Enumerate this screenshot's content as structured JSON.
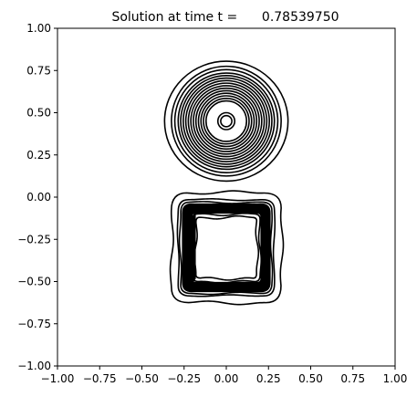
{
  "chart_data": {
    "type": "contour",
    "title": "Solution at time t =      0.78539750",
    "xlabel": "",
    "ylabel": "",
    "xlim": [
      -1.0,
      1.0
    ],
    "ylim": [
      -1.0,
      1.0
    ],
    "grid": false,
    "legend": "none",
    "line_color": "#000000",
    "x_ticks": [
      -1.0,
      -0.75,
      -0.5,
      -0.25,
      0.0,
      0.25,
      0.5,
      0.75,
      1.0
    ],
    "x_tick_labels": [
      "−1.00",
      "−0.75",
      "−0.50",
      "−0.25",
      "0.00",
      "0.25",
      "0.50",
      "0.75",
      "1.00"
    ],
    "y_ticks": [
      -1.0,
      -0.75,
      -0.5,
      -0.25,
      0.0,
      0.25,
      0.5,
      0.75,
      1.0
    ],
    "y_tick_labels": [
      "−1.00",
      "−0.75",
      "−0.50",
      "−0.25",
      "0.00",
      "0.25",
      "0.50",
      "0.75",
      "1.00"
    ],
    "circle": {
      "center": [
        0.0,
        0.45
      ],
      "radii": [
        0.033,
        0.05,
        0.12,
        0.135,
        0.15,
        0.165,
        0.18,
        0.195,
        0.21,
        0.225,
        0.24,
        0.255,
        0.27,
        0.285,
        0.305,
        0.325,
        0.355
      ]
    },
    "square": {
      "center": [
        0.0,
        -0.3
      ],
      "contours": [
        {
          "half_width": 0.285,
          "half_height": 0.285,
          "corner_radius": 0.06
        },
        {
          "half_width": 0.27,
          "half_height": 0.27,
          "corner_radius": 0.05
        },
        {
          "half_width": 0.2,
          "half_height": 0.2,
          "corner_radius": 0.03
        },
        {
          "half_width": 0.18,
          "half_height": 0.18,
          "corner_radius": 0.02
        },
        {
          "half_width": 0.325,
          "half_height": 0.325,
          "corner_radius": 0.09
        }
      ],
      "dense_band": {
        "outer_half": 0.26,
        "inner_half": 0.205
      }
    }
  }
}
